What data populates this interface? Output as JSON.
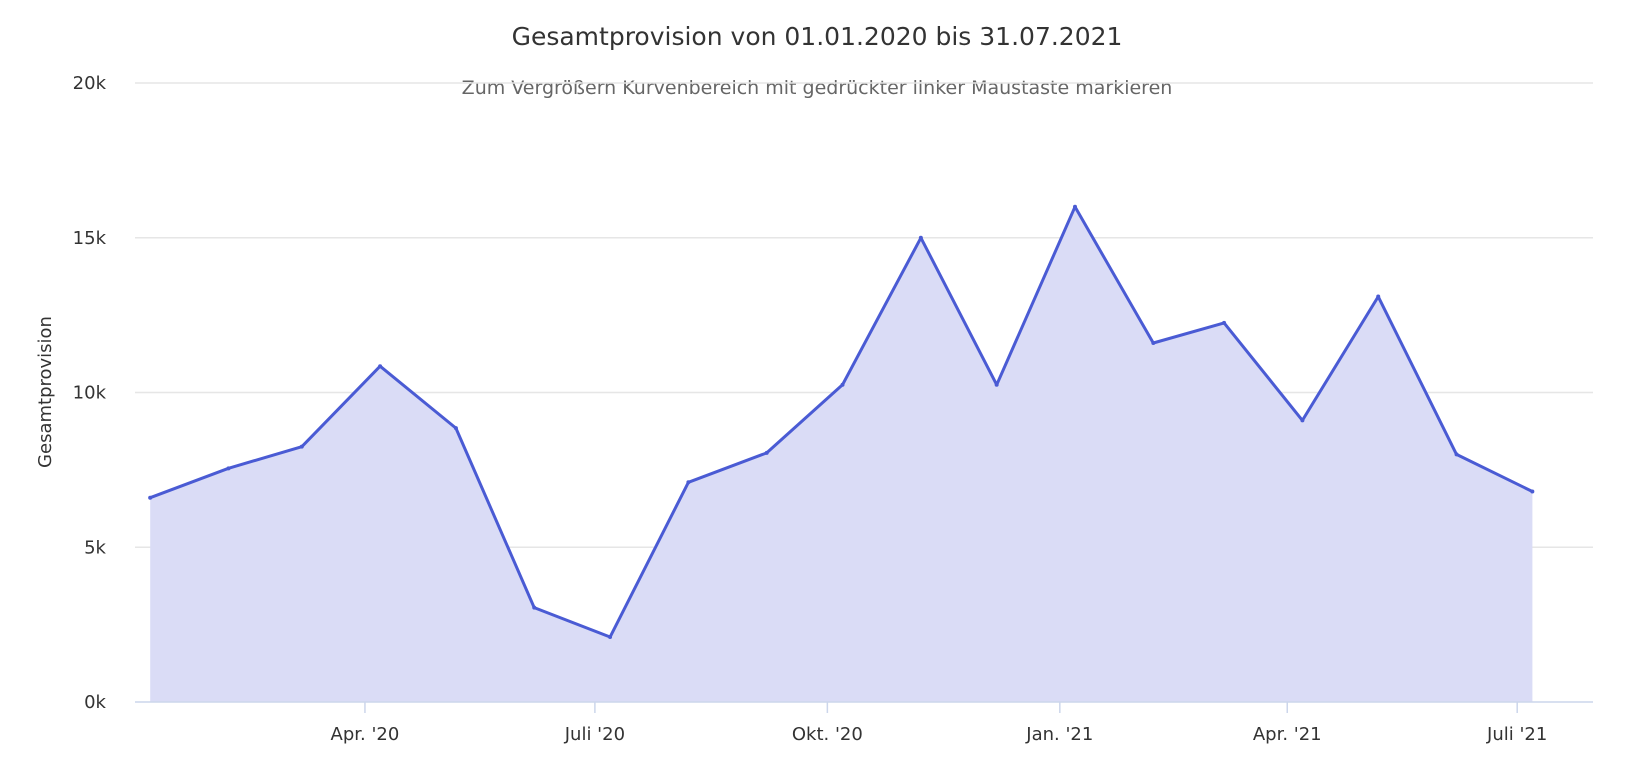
{
  "chart_data": {
    "type": "area",
    "title": "Gesamtprovision von 01.01.2020 bis 31.07.2021",
    "subtitle": "Zum Vergrößern Kurvenbereich mit gedrückter linker Maustaste markieren",
    "ylabel": "Gesamtprovision",
    "xlabel": "",
    "ylim": [
      0,
      20000
    ],
    "y_ticks": [
      {
        "value": 0,
        "label": "0k"
      },
      {
        "value": 5000,
        "label": "5k"
      },
      {
        "value": 10000,
        "label": "10k"
      },
      {
        "value": 15000,
        "label": "15k"
      },
      {
        "value": 20000,
        "label": "20k"
      }
    ],
    "xlim": [
      "2020-01-01",
      "2021-07-31"
    ],
    "x_ticks": [
      {
        "date": "2020-04-01",
        "label": "Apr. '20"
      },
      {
        "date": "2020-07-01",
        "label": "Juli '20"
      },
      {
        "date": "2020-10-01",
        "label": "Okt. '20"
      },
      {
        "date": "2021-01-01",
        "label": "Jan. '21"
      },
      {
        "date": "2021-04-01",
        "label": "Apr. '21"
      },
      {
        "date": "2021-07-01",
        "label": "Juli '21"
      }
    ],
    "grid": true,
    "legend": "none",
    "series": [
      {
        "color": "#4a5bd4",
        "fill_color": "#dadcf6",
        "x": [
          "2020-01-07",
          "2020-02-07",
          "2020-03-07",
          "2020-04-07",
          "2020-05-07",
          "2020-06-07",
          "2020-07-07",
          "2020-08-07",
          "2020-09-07",
          "2020-10-07",
          "2020-11-07",
          "2020-12-07",
          "2021-01-07",
          "2021-02-07",
          "2021-03-07",
          "2021-04-07",
          "2021-05-07",
          "2021-06-07",
          "2021-07-07"
        ],
        "y": [
          6600,
          7550,
          8250,
          10850,
          8850,
          3050,
          2100,
          7100,
          8050,
          10250,
          15000,
          10250,
          16000,
          11600,
          12250,
          9100,
          13100,
          8000,
          6800
        ]
      }
    ]
  }
}
